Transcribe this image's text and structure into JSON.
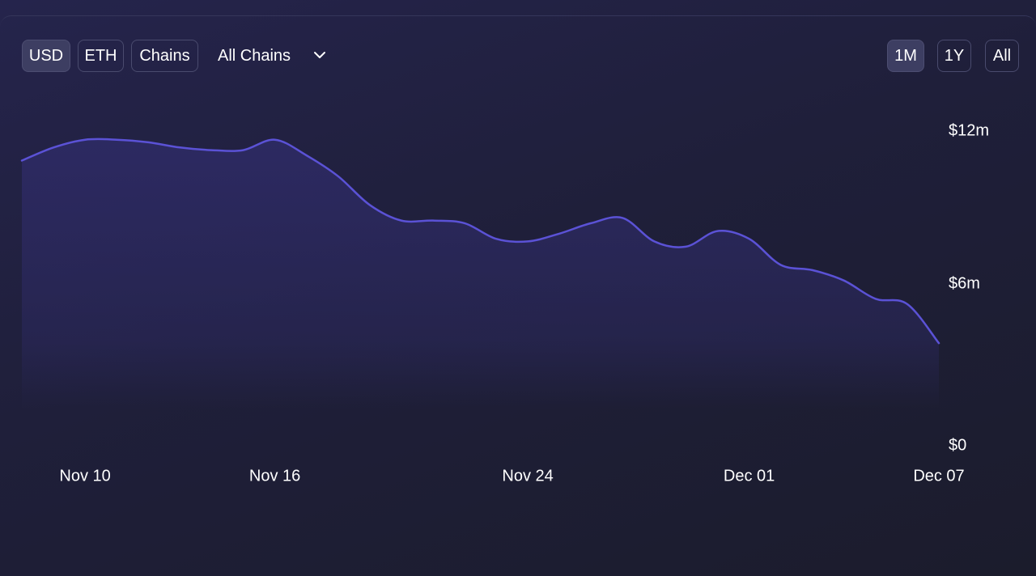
{
  "toolbar": {
    "currency_buttons": [
      {
        "label": "USD",
        "active": true
      },
      {
        "label": "ETH",
        "active": false
      },
      {
        "label": "Chains",
        "active": false
      }
    ],
    "chain_select": {
      "value": "All Chains",
      "icon": "chevron-down-icon"
    },
    "range_buttons": [
      {
        "label": "1M",
        "active": true
      },
      {
        "label": "1Y",
        "active": false
      },
      {
        "label": "All",
        "active": false
      }
    ]
  },
  "colors": {
    "line": "#5b52d6",
    "area_top": "#2d2a63",
    "background": "#1f1f3a",
    "active_button": "#3d3e62",
    "text": "#ffffff"
  },
  "chart_data": {
    "type": "area",
    "x_format": "date",
    "x": [
      "2023-11-08",
      "2023-11-09",
      "2023-11-10",
      "2023-11-11",
      "2023-11-12",
      "2023-11-13",
      "2023-11-14",
      "2023-11-15",
      "2023-11-16",
      "2023-11-17",
      "2023-11-18",
      "2023-11-19",
      "2023-11-20",
      "2023-11-21",
      "2023-11-22",
      "2023-11-23",
      "2023-11-24",
      "2023-11-25",
      "2023-11-26",
      "2023-11-27",
      "2023-11-28",
      "2023-11-29",
      "2023-11-30",
      "2023-12-01",
      "2023-12-02",
      "2023-12-03",
      "2023-12-04",
      "2023-12-05",
      "2023-12-06",
      "2023-12-07"
    ],
    "series": [
      {
        "values": [
          10.9,
          11.4,
          11.7,
          11.7,
          11.6,
          11.4,
          11.3,
          11.3,
          11.7,
          11.1,
          10.3,
          9.2,
          8.6,
          8.6,
          8.5,
          7.9,
          7.8,
          8.1,
          8.5,
          8.7,
          7.8,
          7.6,
          8.2,
          7.9,
          6.9,
          6.7,
          6.3,
          5.6,
          5.4,
          3.9
        ]
      }
    ],
    "x_ticks": [
      {
        "x": "2023-11-10",
        "label": "Nov 10"
      },
      {
        "x": "2023-11-16",
        "label": "Nov 16"
      },
      {
        "x": "2023-11-24",
        "label": "Nov 24"
      },
      {
        "x": "2023-12-01",
        "label": "Dec 01"
      },
      {
        "x": "2023-12-07",
        "label": "Dec 07"
      }
    ],
    "y_ticks": [
      {
        "y": 0,
        "label": "$0"
      },
      {
        "y": 6,
        "label": "$6m"
      },
      {
        "y": 12,
        "label": "$12m"
      }
    ],
    "ylim": [
      0,
      12
    ],
    "y_unit": "millions USD",
    "grid": false,
    "legend": "none"
  }
}
